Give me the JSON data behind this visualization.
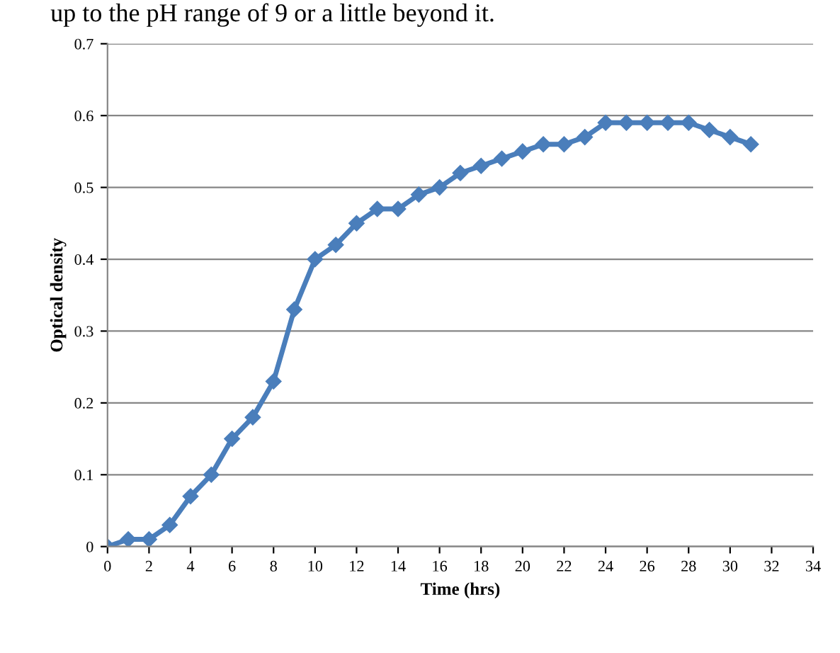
{
  "chart_data": {
    "type": "line",
    "xlabel": "Time (hrs)",
    "ylabel": "Optical density",
    "annotations": [
      "up to the pH range of 9 or a little beyond it."
    ],
    "x": [
      0,
      1,
      2,
      3,
      4,
      5,
      6,
      7,
      8,
      9,
      10,
      11,
      12,
      13,
      14,
      15,
      16,
      17,
      18,
      19,
      20,
      21,
      22,
      23,
      24,
      25,
      26,
      27,
      28,
      29,
      30,
      31
    ],
    "series": [
      {
        "color": "#4a7ebb",
        "values": [
          0,
          0.01,
          0.01,
          0.03,
          0.07,
          0.1,
          0.15,
          0.18,
          0.23,
          0.33,
          0.4,
          0.42,
          0.45,
          0.47,
          0.47,
          0.49,
          0.5,
          0.52,
          0.53,
          0.54,
          0.55,
          0.56,
          0.56,
          0.57,
          0.59,
          0.59,
          0.59,
          0.59,
          0.59,
          0.58,
          0.57,
          0.56
        ]
      }
    ],
    "xlim": [
      0,
      34
    ],
    "xticks": [
      0,
      2,
      4,
      6,
      8,
      10,
      12,
      14,
      16,
      18,
      20,
      22,
      24,
      26,
      28,
      30,
      32,
      34
    ],
    "ylim": [
      0,
      0.7
    ],
    "yticks": [
      0,
      0.1,
      0.2,
      0.3,
      0.4,
      0.5,
      0.6,
      0.7
    ],
    "grid": "y",
    "marker": "diamond",
    "line_style": "solid",
    "legend": false
  }
}
